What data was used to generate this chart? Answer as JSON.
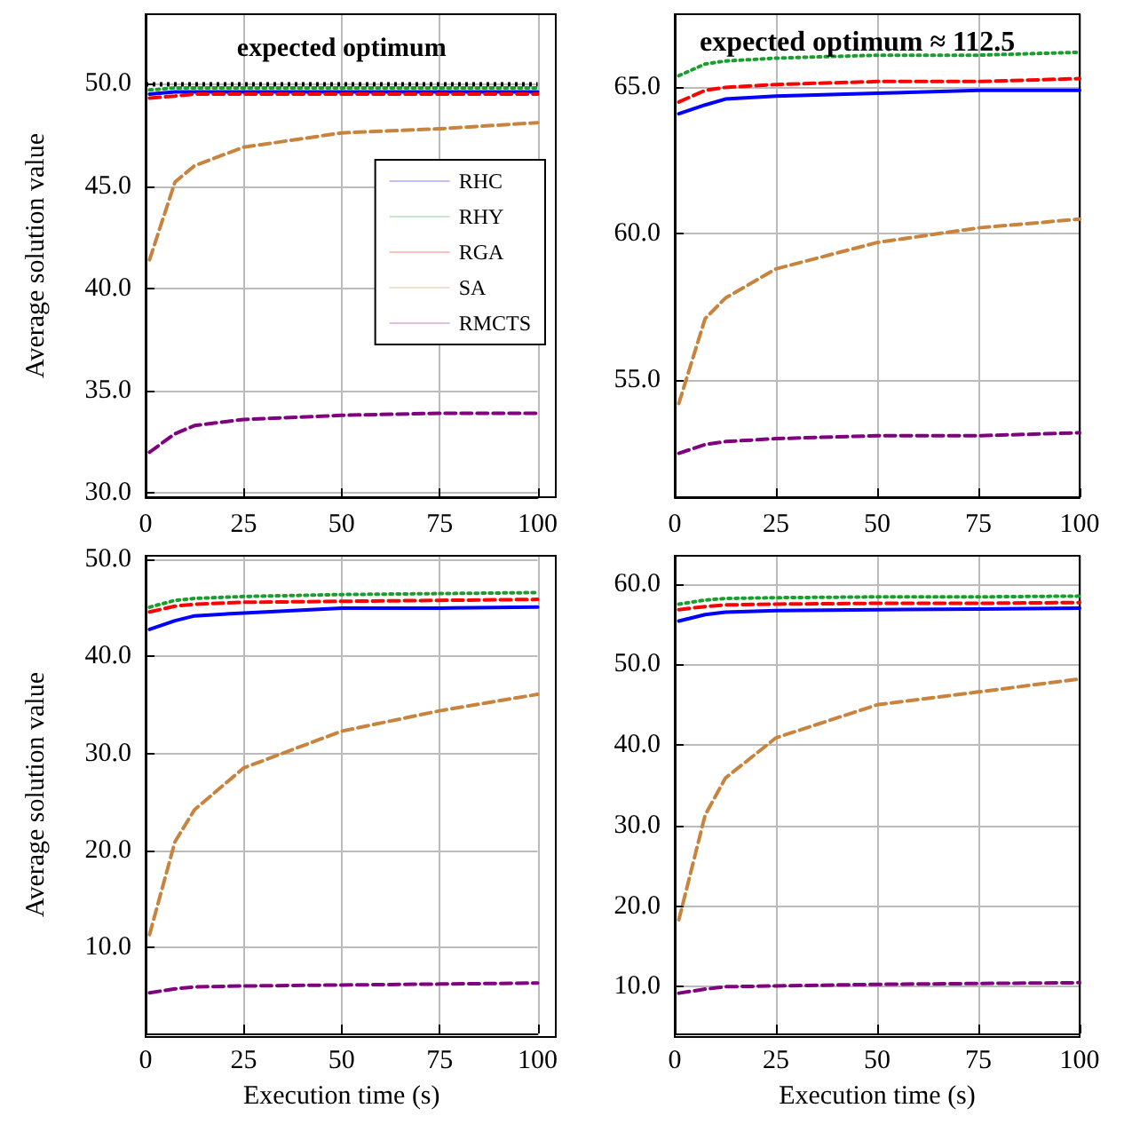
{
  "chart_data": [
    {
      "type": "line",
      "ylabel": "Average solution value",
      "x": [
        1,
        7.5,
        12.5,
        25,
        50,
        75,
        100
      ],
      "xlim": [
        0,
        100
      ],
      "xticks": [
        0,
        25,
        50,
        75,
        100
      ],
      "ylim": [
        29.8,
        53.4
      ],
      "yticks": [
        {
          "value": 30,
          "label": "30.0"
        },
        {
          "value": 35,
          "label": "35.0"
        },
        {
          "value": 40,
          "label": "40.0"
        },
        {
          "value": 45,
          "label": "45.0"
        },
        {
          "value": 50,
          "label": "50.0"
        }
      ],
      "grid": true,
      "legend": "right",
      "ref_lines": [
        {
          "axis": "y",
          "value": 50,
          "label": "expected optimum",
          "color": "#000000",
          "line_style": "dotted"
        }
      ],
      "series": [
        {
          "name": "RHC",
          "color": "#0000ff",
          "line_style": "solid",
          "values": [
            49.5,
            49.6,
            49.6,
            49.6,
            49.6,
            49.6,
            49.6
          ]
        },
        {
          "name": "RHY",
          "color": "#1a9e2e",
          "line_style": "dotted",
          "values": [
            49.7,
            49.8,
            49.8,
            49.8,
            49.8,
            49.8,
            49.8
          ]
        },
        {
          "name": "RGA",
          "color": "#ff0000",
          "line_style": "dashed",
          "values": [
            49.3,
            49.4,
            49.5,
            49.5,
            49.5,
            49.5,
            49.5
          ]
        },
        {
          "name": "SA",
          "color": "#c8843e",
          "line_style": "dashed",
          "values": [
            41.4,
            45.2,
            46.0,
            46.9,
            47.6,
            47.8,
            48.1
          ]
        },
        {
          "name": "RMCTS",
          "color": "#800080",
          "line_style": "dashed",
          "values": [
            32.0,
            32.9,
            33.3,
            33.6,
            33.8,
            33.9,
            33.9
          ]
        }
      ]
    },
    {
      "type": "line",
      "x": [
        1,
        7.5,
        12.5,
        25,
        50,
        75,
        100
      ],
      "xlim": [
        0,
        100
      ],
      "xticks": [
        0,
        25,
        50,
        75,
        100
      ],
      "ylim": [
        51,
        67.5
      ],
      "yticks": [
        {
          "value": 55,
          "label": "55.0"
        },
        {
          "value": 60,
          "label": "60.0"
        },
        {
          "value": 65,
          "label": "65.0"
        }
      ],
      "grid": true,
      "annotations": [
        "expected optimum ≈ 112.5"
      ],
      "series": [
        {
          "color": "#0000ff",
          "line_style": "solid",
          "values": [
            64.1,
            64.4,
            64.6,
            64.7,
            64.8,
            64.9,
            64.9
          ]
        },
        {
          "color": "#1a9e2e",
          "line_style": "dotted",
          "values": [
            65.4,
            65.8,
            65.9,
            66.0,
            66.1,
            66.1,
            66.2
          ]
        },
        {
          "color": "#ff0000",
          "line_style": "dashed",
          "values": [
            64.5,
            64.9,
            65.0,
            65.1,
            65.2,
            65.2,
            65.3
          ]
        },
        {
          "color": "#c8843e",
          "line_style": "dashed",
          "values": [
            54.2,
            57.1,
            57.8,
            58.8,
            59.7,
            60.2,
            60.5
          ]
        },
        {
          "color": "#800080",
          "line_style": "dashed",
          "values": [
            52.5,
            52.8,
            52.9,
            53.0,
            53.1,
            53.1,
            53.2
          ]
        }
      ]
    },
    {
      "type": "line",
      "xlabel": "Execution time (s)",
      "ylabel": "Average solution value",
      "x": [
        1,
        7.5,
        12.5,
        25,
        50,
        75,
        100
      ],
      "xlim": [
        0,
        100
      ],
      "xticks": [
        0,
        25,
        50,
        75,
        100
      ],
      "ylim": [
        1.1,
        50.4
      ],
      "yticks": [
        {
          "value": 10,
          "label": "10.0"
        },
        {
          "value": 20,
          "label": "20.0"
        },
        {
          "value": 30,
          "label": "30.0"
        },
        {
          "value": 40,
          "label": "40.0"
        },
        {
          "value": 50,
          "label": "50.0"
        }
      ],
      "grid": true,
      "series": [
        {
          "color": "#0000ff",
          "line_style": "solid",
          "values": [
            42.8,
            43.7,
            44.2,
            44.5,
            45.0,
            45.0,
            45.1
          ]
        },
        {
          "color": "#1a9e2e",
          "line_style": "dotted",
          "values": [
            45.1,
            45.8,
            46.0,
            46.2,
            46.4,
            46.5,
            46.6
          ]
        },
        {
          "color": "#ff0000",
          "line_style": "dashed",
          "values": [
            44.6,
            45.2,
            45.4,
            45.6,
            45.7,
            45.8,
            45.9
          ]
        },
        {
          "color": "#c8843e",
          "line_style": "dashed",
          "values": [
            11.3,
            20.9,
            24.2,
            28.5,
            32.3,
            34.4,
            36.1
          ]
        },
        {
          "color": "#800080",
          "line_style": "dashed",
          "values": [
            5.3,
            5.7,
            5.9,
            6.0,
            6.1,
            6.2,
            6.3
          ]
        }
      ]
    },
    {
      "type": "line",
      "xlabel": "Execution time (s)",
      "x": [
        1,
        7.5,
        12.5,
        25,
        50,
        75,
        100
      ],
      "xlim": [
        0,
        100
      ],
      "xticks": [
        0,
        25,
        50,
        75,
        100
      ],
      "ylim": [
        4.2,
        63.5
      ],
      "yticks": [
        {
          "value": 10,
          "label": "10.0"
        },
        {
          "value": 20,
          "label": "20.0"
        },
        {
          "value": 30,
          "label": "30.0"
        },
        {
          "value": 40,
          "label": "40.0"
        },
        {
          "value": 50,
          "label": "50.0"
        },
        {
          "value": 60,
          "label": "60.0"
        }
      ],
      "grid": true,
      "series": [
        {
          "color": "#0000ff",
          "line_style": "solid",
          "values": [
            55.4,
            56.2,
            56.5,
            56.7,
            56.8,
            56.9,
            57.0
          ]
        },
        {
          "color": "#1a9e2e",
          "line_style": "dotted",
          "values": [
            57.5,
            58.0,
            58.2,
            58.3,
            58.4,
            58.4,
            58.5
          ]
        },
        {
          "color": "#ff0000",
          "line_style": "dashed",
          "values": [
            56.8,
            57.2,
            57.4,
            57.5,
            57.6,
            57.6,
            57.7
          ]
        },
        {
          "color": "#c8843e",
          "line_style": "dashed",
          "values": [
            18.3,
            31.3,
            35.9,
            40.9,
            45.0,
            46.6,
            48.2
          ]
        },
        {
          "color": "#800080",
          "line_style": "dashed",
          "values": [
            9.2,
            9.7,
            10.0,
            10.1,
            10.3,
            10.4,
            10.5
          ]
        }
      ]
    }
  ]
}
